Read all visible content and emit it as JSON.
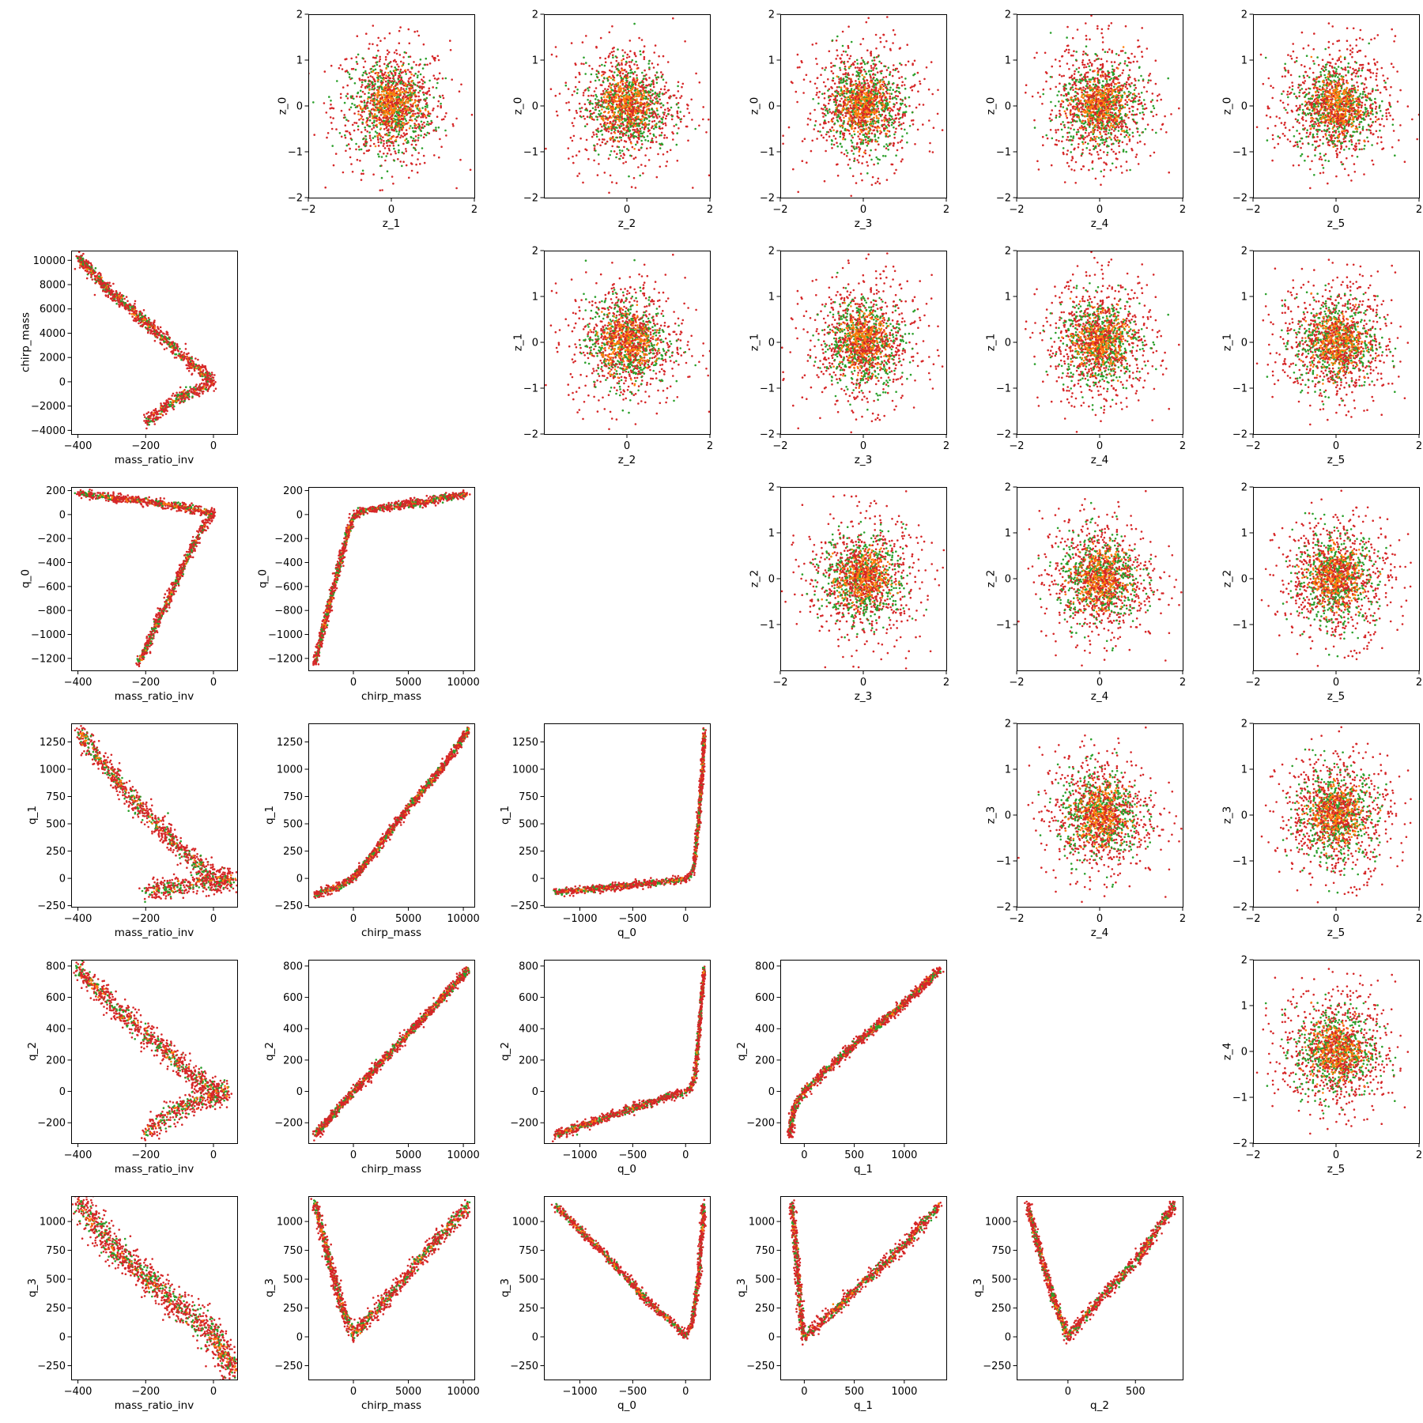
{
  "figure": {
    "variables": [
      "mass_ratio_inv",
      "chirp_mass",
      "q_0",
      "q_1",
      "q_2",
      "q_3",
      "z_0",
      "z_1",
      "z_2",
      "z_3",
      "z_4",
      "z_5"
    ],
    "colors": {
      "red": "#d62728",
      "green": "#2ca02c",
      "orange": "#ff7f0e"
    }
  },
  "chart_data": [
    {
      "type": "scatter",
      "row": 0,
      "col": 1,
      "xlabel": "z_1",
      "ylabel": "z_0",
      "xlim": [
        -2,
        2
      ],
      "ylim": [
        -2,
        2
      ],
      "xticks": [
        -2,
        0,
        2
      ],
      "yticks": [
        -2,
        -1,
        0,
        1,
        2
      ],
      "pattern": "cloud"
    },
    {
      "type": "scatter",
      "row": 0,
      "col": 2,
      "xlabel": "z_2",
      "ylabel": "z_0",
      "xlim": [
        -2,
        2
      ],
      "ylim": [
        -2,
        2
      ],
      "xticks": [
        0,
        2
      ],
      "yticks": [
        -2,
        -1,
        0,
        1,
        2
      ],
      "pattern": "cloud"
    },
    {
      "type": "scatter",
      "row": 0,
      "col": 3,
      "xlabel": "z_3",
      "ylabel": "z_0",
      "xlim": [
        -2,
        2
      ],
      "ylim": [
        -2,
        2
      ],
      "xticks": [
        -2,
        0,
        2
      ],
      "yticks": [
        -2,
        -1,
        0,
        1,
        2
      ],
      "pattern": "cloud"
    },
    {
      "type": "scatter",
      "row": 0,
      "col": 4,
      "xlabel": "z_4",
      "ylabel": "z_0",
      "xlim": [
        -2,
        2
      ],
      "ylim": [
        -2,
        2
      ],
      "xticks": [
        -2,
        0,
        2
      ],
      "yticks": [
        -2,
        -1,
        0,
        1,
        2
      ],
      "pattern": "cloud"
    },
    {
      "type": "scatter",
      "row": 0,
      "col": 5,
      "xlabel": "z_5",
      "ylabel": "z_0",
      "xlim": [
        -2,
        2
      ],
      "ylim": [
        -2,
        2
      ],
      "xticks": [
        -2,
        0,
        2
      ],
      "yticks": [
        -2,
        -1,
        0,
        1,
        2
      ],
      "pattern": "cloud"
    },
    {
      "type": "scatter",
      "row": 1,
      "col": 0,
      "xlabel": "mass_ratio_inv",
      "ylabel": "chirp_mass",
      "xlim": [
        -420,
        70
      ],
      "ylim": [
        -4300,
        10800
      ],
      "xticks": [
        -400,
        -200,
        0
      ],
      "yticks": [
        -4000,
        -2000,
        0,
        2000,
        4000,
        6000,
        8000,
        10000
      ],
      "pattern": "polyline",
      "path": [
        [
          -400,
          10200
        ],
        [
          -300,
          7300
        ],
        [
          -200,
          4900
        ],
        [
          -100,
          2400
        ],
        [
          0,
          0
        ],
        [
          -100,
          -1300
        ],
        [
          -200,
          -3300
        ]
      ],
      "spread": [
        4,
        320
      ]
    },
    {
      "type": "scatter",
      "row": 1,
      "col": 2,
      "xlabel": "z_2",
      "ylabel": "z_1",
      "xlim": [
        -2,
        2
      ],
      "ylim": [
        -2,
        2
      ],
      "xticks": [
        0,
        2
      ],
      "yticks": [
        -2,
        -1,
        0,
        1,
        2
      ],
      "pattern": "cloud"
    },
    {
      "type": "scatter",
      "row": 1,
      "col": 3,
      "xlabel": "z_3",
      "ylabel": "z_1",
      "xlim": [
        -2,
        2
      ],
      "ylim": [
        -2,
        2
      ],
      "xticks": [
        -2,
        0,
        2
      ],
      "yticks": [
        -2,
        -1,
        0,
        1,
        2
      ],
      "pattern": "cloud"
    },
    {
      "type": "scatter",
      "row": 1,
      "col": 4,
      "xlabel": "z_4",
      "ylabel": "z_1",
      "xlim": [
        -2,
        2
      ],
      "ylim": [
        -2,
        2
      ],
      "xticks": [
        -2,
        0,
        2
      ],
      "yticks": [
        -2,
        -1,
        0,
        1,
        2
      ],
      "pattern": "cloud"
    },
    {
      "type": "scatter",
      "row": 1,
      "col": 5,
      "xlabel": "z_5",
      "ylabel": "z_1",
      "xlim": [
        -2,
        2
      ],
      "ylim": [
        -2,
        2
      ],
      "xticks": [
        -2,
        0,
        2
      ],
      "yticks": [
        -2,
        -1,
        0,
        1,
        2
      ],
      "pattern": "cloud"
    },
    {
      "type": "scatter",
      "row": 2,
      "col": 0,
      "xlabel": "mass_ratio_inv",
      "ylabel": "q_0",
      "xlim": [
        -420,
        70
      ],
      "ylim": [
        -1300,
        230
      ],
      "xticks": [
        -400,
        -200,
        0
      ],
      "yticks": [
        -1200,
        -1000,
        -800,
        -600,
        -400,
        -200,
        0,
        200
      ],
      "pattern": "polyline",
      "path": [
        [
          -400,
          175
        ],
        [
          -200,
          110
        ],
        [
          -50,
          40
        ],
        [
          0,
          10
        ],
        [
          -40,
          -150
        ],
        [
          -100,
          -500
        ],
        [
          -220,
          -1240
        ]
      ],
      "spread": [
        5,
        18
      ]
    },
    {
      "type": "scatter",
      "row": 2,
      "col": 1,
      "xlabel": "chirp_mass",
      "ylabel": "q_0",
      "xlim": [
        -4100,
        11000
      ],
      "ylim": [
        -1300,
        230
      ],
      "xticks": [
        0,
        5000,
        10000
      ],
      "yticks": [
        -1200,
        -1000,
        -800,
        -600,
        -400,
        -200,
        0,
        200
      ],
      "pattern": "polyline",
      "path": [
        [
          -3500,
          -1240
        ],
        [
          -1500,
          -500
        ],
        [
          -500,
          -150
        ],
        [
          0,
          -10
        ],
        [
          600,
          20
        ],
        [
          3000,
          60
        ],
        [
          6000,
          100
        ],
        [
          10500,
          175
        ]
      ],
      "spread": [
        120,
        18
      ]
    },
    {
      "type": "scatter",
      "row": 2,
      "col": 3,
      "xlabel": "z_3",
      "ylabel": "z_2",
      "xlim": [
        -2,
        2
      ],
      "ylim": [
        -2,
        2
      ],
      "xticks": [
        -2,
        0,
        2
      ],
      "yticks": [
        -1,
        0,
        1,
        2
      ],
      "pattern": "cloud"
    },
    {
      "type": "scatter",
      "row": 2,
      "col": 4,
      "xlabel": "z_4",
      "ylabel": "z_2",
      "xlim": [
        -2,
        2
      ],
      "ylim": [
        -2,
        2
      ],
      "xticks": [
        -2,
        0,
        2
      ],
      "yticks": [
        -1,
        0,
        1,
        2
      ],
      "pattern": "cloud"
    },
    {
      "type": "scatter",
      "row": 2,
      "col": 5,
      "xlabel": "z_5",
      "ylabel": "z_2",
      "xlim": [
        -2,
        2
      ],
      "ylim": [
        -2,
        2
      ],
      "xticks": [
        -2,
        0,
        2
      ],
      "yticks": [
        -1,
        0,
        1,
        2
      ],
      "pattern": "cloud"
    },
    {
      "type": "scatter",
      "row": 3,
      "col": 0,
      "xlabel": "mass_ratio_inv",
      "ylabel": "q_1",
      "xlim": [
        -420,
        70
      ],
      "ylim": [
        -260,
        1420
      ],
      "xticks": [
        -400,
        -200,
        0
      ],
      "yticks": [
        -250,
        0,
        250,
        500,
        750,
        1000,
        1250
      ],
      "pattern": "polyline",
      "path": [
        [
          -400,
          1350
        ],
        [
          -300,
          950
        ],
        [
          -200,
          600
        ],
        [
          -100,
          280
        ],
        [
          0,
          0
        ],
        [
          60,
          -10
        ],
        [
          -100,
          -60
        ],
        [
          -200,
          -130
        ]
      ],
      "spread": [
        10,
        55
      ]
    },
    {
      "type": "scatter",
      "row": 3,
      "col": 1,
      "xlabel": "chirp_mass",
      "ylabel": "q_1",
      "xlim": [
        -4100,
        11000
      ],
      "ylim": [
        -260,
        1420
      ],
      "xticks": [
        0,
        5000,
        10000
      ],
      "yticks": [
        -250,
        0,
        250,
        500,
        750,
        1000,
        1250
      ],
      "pattern": "polyline",
      "path": [
        [
          -3500,
          -150
        ],
        [
          -1500,
          -80
        ],
        [
          0,
          0
        ],
        [
          2000,
          250
        ],
        [
          5000,
          650
        ],
        [
          8000,
          1000
        ],
        [
          10500,
          1360
        ]
      ],
      "spread": [
        130,
        20
      ]
    },
    {
      "type": "scatter",
      "row": 3,
      "col": 2,
      "xlabel": "q_0",
      "ylabel": "q_1",
      "xlim": [
        -1340,
        230
      ],
      "ylim": [
        -260,
        1420
      ],
      "xticks": [
        -1000,
        -500,
        0
      ],
      "yticks": [
        -250,
        0,
        250,
        500,
        750,
        1000,
        1250
      ],
      "pattern": "polyline",
      "path": [
        [
          -1240,
          -130
        ],
        [
          -600,
          -70
        ],
        [
          -100,
          -20
        ],
        [
          0,
          0
        ],
        [
          50,
          20
        ],
        [
          80,
          120
        ],
        [
          120,
          500
        ],
        [
          160,
          1000
        ],
        [
          175,
          1350
        ]
      ],
      "spread": [
        8,
        18
      ]
    },
    {
      "type": "scatter",
      "row": 3,
      "col": 4,
      "xlabel": "z_4",
      "ylabel": "z_3",
      "xlim": [
        -2,
        2
      ],
      "ylim": [
        -2,
        2
      ],
      "xticks": [
        -2,
        0,
        2
      ],
      "yticks": [
        -2,
        -1,
        0,
        1,
        2
      ],
      "pattern": "cloud"
    },
    {
      "type": "scatter",
      "row": 3,
      "col": 5,
      "xlabel": "z_5",
      "ylabel": "z_3",
      "xlim": [
        -2,
        2
      ],
      "ylim": [
        -2,
        2
      ],
      "xticks": [
        -2,
        0,
        2
      ],
      "yticks": [
        -2,
        -1,
        0,
        1,
        2
      ],
      "pattern": "cloud"
    },
    {
      "type": "scatter",
      "row": 4,
      "col": 0,
      "xlabel": "mass_ratio_inv",
      "ylabel": "q_2",
      "xlim": [
        -420,
        70
      ],
      "ylim": [
        -330,
        840
      ],
      "xticks": [
        -400,
        -200,
        0
      ],
      "yticks": [
        -200,
        0,
        200,
        400,
        600,
        800
      ],
      "pattern": "polyline",
      "path": [
        [
          -400,
          780
        ],
        [
          -300,
          560
        ],
        [
          -200,
          360
        ],
        [
          -100,
          180
        ],
        [
          0,
          0
        ],
        [
          40,
          -5
        ],
        [
          -100,
          -100
        ],
        [
          -200,
          -260
        ]
      ],
      "spread": [
        10,
        40
      ]
    },
    {
      "type": "scatter",
      "row": 4,
      "col": 1,
      "xlabel": "chirp_mass",
      "ylabel": "q_2",
      "xlim": [
        -4100,
        11000
      ],
      "ylim": [
        -330,
        840
      ],
      "xticks": [
        0,
        5000,
        10000
      ],
      "yticks": [
        -200,
        0,
        200,
        400,
        600,
        800
      ],
      "pattern": "polyline",
      "path": [
        [
          -3500,
          -280
        ],
        [
          -1500,
          -120
        ],
        [
          0,
          0
        ],
        [
          3000,
          220
        ],
        [
          6000,
          440
        ],
        [
          10500,
          780
        ]
      ],
      "spread": [
        130,
        15
      ]
    },
    {
      "type": "scatter",
      "row": 4,
      "col": 2,
      "xlabel": "q_0",
      "ylabel": "q_2",
      "xlim": [
        -1340,
        230
      ],
      "ylim": [
        -330,
        840
      ],
      "xticks": [
        -1000,
        -500,
        0
      ],
      "yticks": [
        -200,
        0,
        200,
        400,
        600,
        800
      ],
      "pattern": "polyline",
      "path": [
        [
          -1240,
          -280
        ],
        [
          -600,
          -130
        ],
        [
          -100,
          -20
        ],
        [
          0,
          0
        ],
        [
          50,
          20
        ],
        [
          90,
          100
        ],
        [
          130,
          400
        ],
        [
          175,
          780
        ]
      ],
      "spread": [
        8,
        14
      ]
    },
    {
      "type": "scatter",
      "row": 4,
      "col": 3,
      "xlabel": "q_1",
      "ylabel": "q_2",
      "xlim": [
        -240,
        1420
      ],
      "ylim": [
        -330,
        840
      ],
      "xticks": [
        0,
        500,
        1000
      ],
      "yticks": [
        -200,
        0,
        200,
        400,
        600,
        800
      ],
      "pattern": "polyline",
      "path": [
        [
          -150,
          -280
        ],
        [
          -100,
          -100
        ],
        [
          0,
          0
        ],
        [
          500,
          300
        ],
        [
          1000,
          560
        ],
        [
          1360,
          780
        ]
      ],
      "spread": [
        15,
        15
      ]
    },
    {
      "type": "scatter",
      "row": 4,
      "col": 5,
      "xlabel": "z_5",
      "ylabel": "z_4",
      "xlim": [
        -2,
        2
      ],
      "ylim": [
        -2,
        2
      ],
      "xticks": [
        -2,
        0,
        2
      ],
      "yticks": [
        -2,
        -1,
        0,
        1,
        2
      ],
      "pattern": "cloud"
    },
    {
      "type": "scatter",
      "row": 5,
      "col": 0,
      "xlabel": "mass_ratio_inv",
      "ylabel": "q_3",
      "xlim": [
        -420,
        70
      ],
      "ylim": [
        -370,
        1220
      ],
      "xticks": [
        -400,
        -200,
        0
      ],
      "yticks": [
        -250,
        0,
        250,
        500,
        750,
        1000
      ],
      "pattern": "polyline",
      "path": [
        [
          -400,
          1150
        ],
        [
          -300,
          800
        ],
        [
          -200,
          520
        ],
        [
          -100,
          260
        ],
        [
          0,
          20
        ],
        [
          60,
          -320
        ]
      ],
      "spread": [
        15,
        80
      ]
    },
    {
      "type": "scatter",
      "row": 5,
      "col": 1,
      "xlabel": "chirp_mass",
      "ylabel": "q_3",
      "xlim": [
        -4100,
        11000
      ],
      "ylim": [
        -370,
        1220
      ],
      "xticks": [
        0,
        5000,
        10000
      ],
      "yticks": [
        -250,
        0,
        250,
        500,
        750,
        1000
      ],
      "pattern": "polyline",
      "path": [
        [
          -3500,
          1150
        ],
        [
          -2000,
          600
        ],
        [
          -1000,
          250
        ],
        [
          0,
          20
        ],
        [
          2000,
          220
        ],
        [
          5000,
          550
        ],
        [
          8000,
          880
        ],
        [
          10500,
          1150
        ]
      ],
      "spread": [
        150,
        40
      ]
    },
    {
      "type": "scatter",
      "row": 5,
      "col": 2,
      "xlabel": "q_0",
      "ylabel": "q_3",
      "xlim": [
        -1340,
        230
      ],
      "ylim": [
        -370,
        1220
      ],
      "xticks": [
        -1000,
        -500,
        0
      ],
      "yticks": [
        -250,
        0,
        250,
        500,
        750,
        1000
      ],
      "pattern": "polyline",
      "path": [
        [
          -1240,
          1140
        ],
        [
          -800,
          750
        ],
        [
          -400,
          350
        ],
        [
          -100,
          100
        ],
        [
          0,
          0
        ],
        [
          60,
          100
        ],
        [
          120,
          500
        ],
        [
          175,
          1150
        ]
      ],
      "spread": [
        10,
        20
      ]
    },
    {
      "type": "scatter",
      "row": 5,
      "col": 3,
      "xlabel": "q_1",
      "ylabel": "q_3",
      "xlim": [
        -240,
        1420
      ],
      "ylim": [
        -370,
        1220
      ],
      "xticks": [
        0,
        500,
        1000
      ],
      "yticks": [
        -250,
        0,
        250,
        500,
        750,
        1000
      ],
      "pattern": "polyline",
      "path": [
        [
          -120,
          1140
        ],
        [
          -60,
          500
        ],
        [
          -20,
          50
        ],
        [
          0,
          0
        ],
        [
          300,
          230
        ],
        [
          700,
          550
        ],
        [
          1000,
          800
        ],
        [
          1360,
          1150
        ]
      ],
      "spread": [
        15,
        30
      ]
    },
    {
      "type": "scatter",
      "row": 5,
      "col": 4,
      "xlabel": "q_2",
      "ylabel": "q_3",
      "xlim": [
        -380,
        850
      ],
      "ylim": [
        -370,
        1220
      ],
      "xticks": [
        0,
        500
      ],
      "yticks": [
        -250,
        0,
        250,
        500,
        750,
        1000
      ],
      "pattern": "polyline",
      "path": [
        [
          -300,
          1140
        ],
        [
          -200,
          700
        ],
        [
          -100,
          300
        ],
        [
          0,
          0
        ],
        [
          200,
          280
        ],
        [
          500,
          650
        ],
        [
          790,
          1150
        ]
      ],
      "spread": [
        10,
        30
      ]
    }
  ]
}
